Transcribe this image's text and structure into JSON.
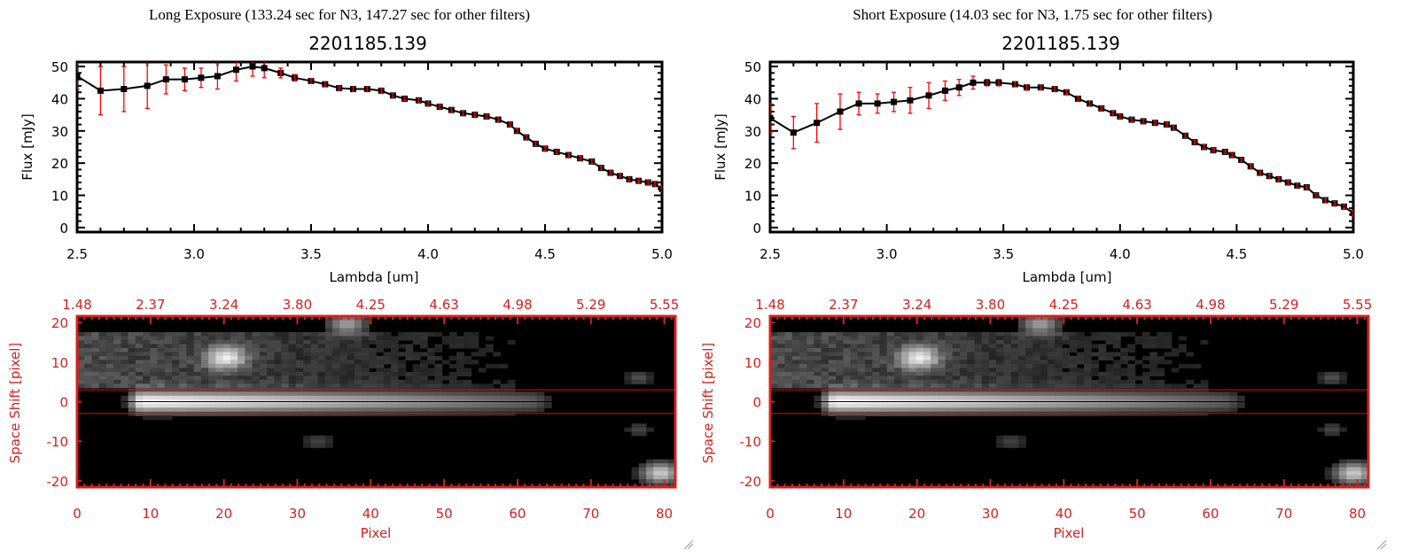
{
  "chart_data": [
    {
      "type": "line",
      "panel": "long-spectrum",
      "title": "Long Exposure (133.24 sec for N3, 147.27 sec for other filters)",
      "subtitle": "2201185.139",
      "xlabel": "Lambda [um]",
      "ylabel": "Flux [mJy]",
      "xlim": [
        2.5,
        5.0
      ],
      "ylim": [
        -1.4,
        51.4
      ],
      "xticks": [
        "2.5",
        "3.0",
        "3.5",
        "4.0",
        "4.5",
        "5.0"
      ],
      "yticks": [
        "0",
        "10",
        "20",
        "30",
        "40",
        "50"
      ],
      "x": [
        2.5,
        2.6,
        2.7,
        2.8,
        2.88,
        2.96,
        3.03,
        3.1,
        3.18,
        3.25,
        3.3,
        3.37,
        3.43,
        3.5,
        3.56,
        3.62,
        3.68,
        3.74,
        3.8,
        3.85,
        3.9,
        3.96,
        4.0,
        4.05,
        4.1,
        4.15,
        4.2,
        4.25,
        4.3,
        4.35,
        4.38,
        4.42,
        4.46,
        4.5,
        4.55,
        4.6,
        4.65,
        4.7,
        4.74,
        4.78,
        4.82,
        4.86,
        4.9,
        4.94,
        4.97,
        5.0
      ],
      "y": [
        47,
        42.5,
        43,
        44,
        46,
        46,
        46.5,
        47,
        49,
        50,
        49.5,
        48,
        46.5,
        45.5,
        44.5,
        43.3,
        43,
        43,
        42.5,
        41,
        40,
        39.5,
        38.5,
        37.5,
        36.5,
        35.5,
        35,
        34.5,
        33.5,
        32,
        30,
        28,
        26,
        24.5,
        23.5,
        22.5,
        21.5,
        20.5,
        18.5,
        17,
        16,
        15,
        14.5,
        14,
        13.5,
        12
      ],
      "err": [
        4,
        7.5,
        7,
        7,
        4.5,
        3.5,
        3,
        4,
        3.5,
        3,
        3,
        1.5,
        1,
        0.8,
        0.8,
        0.7,
        0.7,
        0.7,
        0.7,
        0.6,
        0.6,
        0.6,
        0.6,
        0.6,
        0.6,
        0.6,
        0.6,
        0.6,
        0.6,
        0.6,
        0.6,
        0.6,
        0.6,
        0.6,
        0.6,
        0.6,
        0.6,
        0.6,
        0.6,
        0.6,
        0.6,
        0.6,
        0.6,
        0.6,
        0.6,
        0.8
      ],
      "line_color": "#000000",
      "error_color": "#ff0000"
    },
    {
      "type": "line",
      "panel": "short-spectrum",
      "title": "Short Exposure (14.03 sec for N3, 1.75 sec for other filters)",
      "subtitle": "2201185.139",
      "xlabel": "Lambda [um]",
      "ylabel": "Flux [mJy]",
      "xlim": [
        2.5,
        5.0
      ],
      "ylim": [
        -1.4,
        51.4
      ],
      "xticks": [
        "2.5",
        "3.0",
        "3.5",
        "4.0",
        "4.5",
        "5.0"
      ],
      "yticks": [
        "0",
        "10",
        "20",
        "30",
        "40",
        "50"
      ],
      "x": [
        2.5,
        2.6,
        2.7,
        2.8,
        2.88,
        2.96,
        3.03,
        3.1,
        3.18,
        3.25,
        3.31,
        3.37,
        3.43,
        3.48,
        3.55,
        3.6,
        3.66,
        3.72,
        3.77,
        3.82,
        3.87,
        3.92,
        3.97,
        4.0,
        4.05,
        4.1,
        4.15,
        4.2,
        4.23,
        4.28,
        4.32,
        4.36,
        4.4,
        4.45,
        4.48,
        4.52,
        4.56,
        4.6,
        4.64,
        4.68,
        4.72,
        4.76,
        4.8,
        4.84,
        4.88,
        4.92,
        4.96,
        5.0
      ],
      "y": [
        34,
        29.5,
        32.5,
        36,
        38.5,
        38.5,
        39,
        39.5,
        41,
        42.5,
        43.5,
        45,
        45,
        45,
        44.5,
        43.5,
        43.5,
        43,
        42,
        40,
        38.5,
        37,
        35.5,
        34.5,
        33.5,
        33,
        32.5,
        32,
        31,
        28.5,
        26.5,
        25,
        24,
        23.5,
        22.5,
        21,
        19,
        17,
        16,
        15,
        14,
        13,
        12.5,
        10,
        8.5,
        7.5,
        6.5,
        4.5
      ],
      "err": [
        4.5,
        5,
        6,
        5.5,
        3.5,
        3,
        3,
        4,
        4,
        3,
        2.5,
        2,
        1,
        1,
        0.8,
        0.8,
        0.7,
        0.7,
        0.7,
        0.7,
        0.6,
        0.6,
        0.6,
        0.6,
        0.6,
        0.6,
        0.6,
        0.6,
        0.6,
        0.6,
        0.6,
        0.6,
        0.6,
        0.6,
        0.6,
        0.6,
        0.6,
        0.6,
        0.6,
        0.6,
        0.6,
        0.6,
        0.6,
        0.6,
        0.6,
        0.6,
        0.6,
        0.8
      ],
      "line_color": "#000000",
      "error_color": "#ff0000"
    },
    {
      "type": "heatmap",
      "panel": "long-image",
      "xlabel": "Pixel",
      "ylabel": "Space Shift [pixel]",
      "xlim": [
        0,
        81.5
      ],
      "ylim": [
        -21.6,
        21.6
      ],
      "xticks": [
        "0",
        "10",
        "20",
        "30",
        "40",
        "50",
        "60",
        "70",
        "80"
      ],
      "yticks": [
        "-20",
        "-10",
        "0",
        "10",
        "20"
      ],
      "top_axis_label_values": [
        "1.48",
        "2.37",
        "3.24",
        "3.80",
        "4.25",
        "4.63",
        "4.98",
        "5.29",
        "5.55"
      ],
      "aperture_lines": [
        3,
        -3
      ],
      "center_line": 0,
      "axis_color": "#d42121",
      "sources": [
        {
          "x0": 9,
          "x1": 62,
          "y": 0,
          "peak": 1.0,
          "end_peak": 0.3,
          "sigma": 1.8
        },
        {
          "x": 20.5,
          "y": 11,
          "peak": 0.7,
          "sigma": 2.0
        },
        {
          "x": 37,
          "y": 19.5,
          "peak": 0.55,
          "sigma": 1.8
        },
        {
          "x": 80,
          "y": -18,
          "peak": 0.75,
          "sigma": 1.8
        },
        {
          "x": 33,
          "y": -10,
          "peak": 0.18,
          "sigma": 1.5
        },
        {
          "x": 77,
          "y": 6,
          "peak": 0.25,
          "sigma": 1.2
        },
        {
          "x": 77,
          "y": -7,
          "peak": 0.2,
          "sigma": 1.2
        }
      ],
      "halo": {
        "x0": 0,
        "x1": 60,
        "y0": 4,
        "y1": 17,
        "level": 0.22
      }
    },
    {
      "type": "heatmap",
      "panel": "short-image",
      "xlabel": "Pixel",
      "ylabel": "Space Shift [pixel]",
      "xlim": [
        0,
        81.5
      ],
      "ylim": [
        -21.6,
        21.6
      ],
      "xticks": [
        "0",
        "10",
        "20",
        "30",
        "40",
        "50",
        "60",
        "70",
        "80"
      ],
      "yticks": [
        "-20",
        "-10",
        "0",
        "10",
        "20"
      ],
      "top_axis_label_values": [
        "1.48",
        "2.37",
        "3.24",
        "3.80",
        "4.25",
        "4.63",
        "4.98",
        "5.29",
        "5.55"
      ],
      "aperture_lines": [
        3,
        -3
      ],
      "center_line": 0,
      "axis_color": "#d42121",
      "sources": [
        {
          "x0": 9,
          "x1": 62,
          "y": 0,
          "peak": 1.0,
          "end_peak": 0.3,
          "sigma": 1.8
        },
        {
          "x": 20.5,
          "y": 11,
          "peak": 0.7,
          "sigma": 2.0
        },
        {
          "x": 37,
          "y": 19.5,
          "peak": 0.55,
          "sigma": 1.8
        },
        {
          "x": 80,
          "y": -18,
          "peak": 0.75,
          "sigma": 1.8
        },
        {
          "x": 33,
          "y": -10,
          "peak": 0.18,
          "sigma": 1.5
        },
        {
          "x": 77,
          "y": 6,
          "peak": 0.25,
          "sigma": 1.2
        },
        {
          "x": 77,
          "y": -7,
          "peak": 0.2,
          "sigma": 1.2
        }
      ],
      "halo": {
        "x0": 0,
        "x1": 60,
        "y0": 4,
        "y1": 17,
        "level": 0.22
      }
    }
  ]
}
